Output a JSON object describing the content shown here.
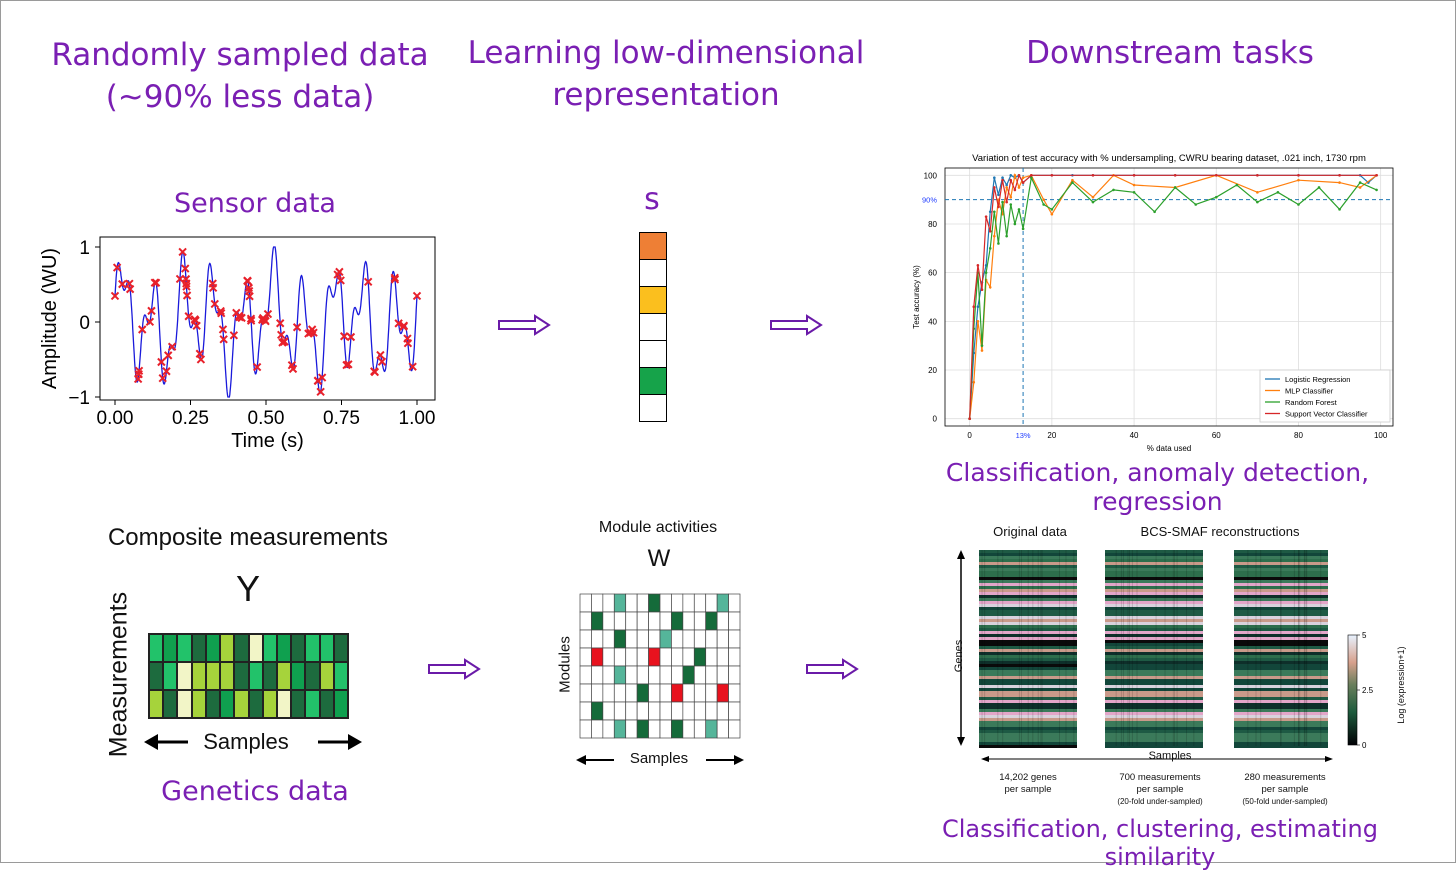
{
  "headers": {
    "col1_line1": "Randomly sampled data",
    "col1_line2": "(~90% less data)",
    "col2_line1": "Learning low-dimensional",
    "col2_line2": "representation",
    "col3": "Downstream tasks"
  },
  "sensor": {
    "title": "Sensor data",
    "ylabel": "Amplitude (WU)",
    "xlabel": "Time (s)",
    "xticks": [
      "0.00",
      "0.25",
      "0.50",
      "0.75",
      "1.00"
    ],
    "yticks": [
      "1",
      "0",
      "−1"
    ],
    "line_color": "#1a1adb",
    "marker_color": "#e8212b"
  },
  "svector": {
    "label": "s",
    "cells": [
      "#ee7f35",
      "#ffffff",
      "#fbbf1e",
      "#ffffff",
      "#ffffff",
      "#16a34a",
      "#ffffff"
    ]
  },
  "accuracy_chart": {
    "caption": "Classification, anomaly detection, regression"
  },
  "chart_data": {
    "type": "line",
    "title": "Variation of test accuracy with % undersampling, CWRU bearing dataset, .021 inch, 1730 rpm",
    "xlabel": "% data used",
    "ylabel": "Test accuracy (%)",
    "xlim": [
      -6,
      103
    ],
    "ylim": [
      -3,
      103
    ],
    "xticks": [
      "0",
      "20",
      "40",
      "60",
      "80",
      "100"
    ],
    "yticks": [
      "0",
      "20",
      "40",
      "60",
      "80",
      "100"
    ],
    "hline": {
      "y": 90,
      "label": "90%"
    },
    "vline": {
      "x": 13,
      "label": "13%"
    },
    "series": [
      {
        "name": "Logistic Regression",
        "color": "#1f77b4",
        "x": [
          0,
          1,
          2,
          3,
          4,
          5,
          6,
          7,
          8,
          9,
          10,
          11,
          12,
          13,
          15,
          20,
          25,
          30,
          40,
          50,
          60,
          70,
          80,
          90,
          95,
          97,
          99
        ],
        "values": [
          0,
          27,
          46,
          56,
          63,
          85,
          99,
          92,
          99,
          96,
          100,
          99,
          100,
          97,
          100,
          100,
          100,
          100,
          100,
          100,
          100,
          100,
          100,
          100,
          100,
          97,
          100
        ]
      },
      {
        "name": "MLP Classifier",
        "color": "#ff7f0e",
        "x": [
          0,
          1,
          2,
          3,
          4,
          5,
          6,
          7,
          8,
          9,
          10,
          11,
          12,
          13,
          15,
          18,
          20,
          25,
          30,
          35,
          40,
          50,
          60,
          70,
          80,
          90,
          95,
          99
        ],
        "values": [
          0,
          15,
          40,
          28,
          57,
          54,
          75,
          90,
          84,
          95,
          91,
          100,
          95,
          99,
          100,
          90,
          84,
          98,
          91,
          100,
          96,
          95,
          100,
          93,
          98,
          97,
          95,
          100
        ]
      },
      {
        "name": "Random Forest",
        "color": "#2ca02c",
        "x": [
          0,
          1,
          2,
          3,
          4,
          5,
          6,
          7,
          8,
          9,
          10,
          11,
          12,
          13,
          15,
          18,
          20,
          25,
          30,
          35,
          40,
          45,
          50,
          55,
          60,
          65,
          70,
          75,
          80,
          85,
          90,
          95,
          99
        ],
        "values": [
          0,
          37,
          60,
          30,
          60,
          70,
          85,
          72,
          89,
          75,
          88,
          80,
          86,
          78,
          99,
          88,
          86,
          97,
          89,
          94,
          93,
          85,
          95,
          88,
          91,
          96,
          89,
          93,
          88,
          95,
          86,
          97,
          94
        ]
      },
      {
        "name": "Support Vector Classifier",
        "color": "#d62728",
        "x": [
          0,
          1,
          2,
          3,
          4,
          5,
          6,
          7,
          8,
          9,
          10,
          11,
          12,
          13,
          15,
          20,
          30,
          40,
          50,
          60,
          70,
          80,
          90,
          99
        ],
        "values": [
          0,
          46,
          63,
          53,
          83,
          77,
          95,
          87,
          98,
          89,
          98,
          94,
          100,
          97,
          100,
          100,
          100,
          100,
          100,
          100,
          100,
          100,
          100,
          100
        ]
      }
    ]
  },
  "genetics": {
    "title": "Composite measurements",
    "matrix_label": "Y",
    "ylabel": "Measurements",
    "xlabel": "Samples",
    "caption": "Genetics data",
    "rows": [
      [
        "#22c26a",
        "#10a04e",
        "#22c26a",
        "#1d6b3e",
        "#0fa04f",
        "#a6d33b",
        "#1d6b3e",
        "#f2f5c7",
        "#22c26a",
        "#0fa04f",
        "#1d6b3e",
        "#22c26a",
        "#22c26a",
        "#1d6b3e"
      ],
      [
        "#1d6b3e",
        "#22c26a",
        "#f2f5c7",
        "#a6d33b",
        "#a6d33b",
        "#a6d33b",
        "#1d6b3e",
        "#22c26a",
        "#1d6b3e",
        "#a6d33b",
        "#0fa04f",
        "#1d6b3e",
        "#a6d33b",
        "#22c26a"
      ],
      [
        "#a6d33b",
        "#1d6b3e",
        "#f2f5c7",
        "#a6d33b",
        "#1d6b3e",
        "#0fa04f",
        "#a6d33b",
        "#1d6b3e",
        "#a6d33b",
        "#f2f5c7",
        "#1d6b3e",
        "#22c26a",
        "#1d6b3e",
        "#0fa04f"
      ]
    ]
  },
  "modules": {
    "title": "Module activities",
    "matrix_label": "W",
    "ylabel": "Modules",
    "xlabel": "Samples",
    "cells": [
      [
        0,
        0,
        0,
        2,
        0,
        0,
        1,
        0,
        0,
        0,
        0,
        0,
        2,
        0
      ],
      [
        0,
        1,
        0,
        0,
        0,
        0,
        0,
        0,
        1,
        0,
        0,
        1,
        0,
        0
      ],
      [
        0,
        0,
        0,
        1,
        0,
        0,
        0,
        2,
        0,
        0,
        0,
        0,
        0,
        0
      ],
      [
        0,
        3,
        0,
        0,
        0,
        0,
        3,
        0,
        0,
        0,
        1,
        0,
        0,
        0
      ],
      [
        0,
        0,
        0,
        2,
        0,
        0,
        0,
        0,
        0,
        1,
        0,
        0,
        0,
        0
      ],
      [
        0,
        0,
        0,
        0,
        0,
        1,
        0,
        0,
        3,
        0,
        0,
        0,
        3,
        0
      ],
      [
        0,
        1,
        0,
        0,
        0,
        0,
        0,
        0,
        0,
        0,
        0,
        0,
        0,
        0
      ],
      [
        0,
        0,
        0,
        2,
        0,
        1,
        0,
        0,
        1,
        0,
        0,
        2,
        0,
        0
      ]
    ],
    "palette": [
      "#ffffff",
      "#156b3a",
      "#55b59a",
      "#e8121e"
    ]
  },
  "reconstruction": {
    "title_original": "Original data",
    "title_recon": "BCS-SMAF reconstructions",
    "genes_label": "Genes",
    "samples_label": "Samples",
    "colorbar_label": "Log (expression+1)",
    "colorbar_ticks": [
      "5",
      "2.5",
      "0"
    ],
    "notes": [
      {
        "line1": "14,202 genes",
        "line2": "per sample",
        "line3": ""
      },
      {
        "line1": "700 measurements",
        "line2": "per sample",
        "line3": "(20-fold under-sampled)"
      },
      {
        "line1": "280 measurements",
        "line2": "per sample",
        "line3": "(50-fold under-sampled)"
      }
    ],
    "caption": "Classification, clustering, estimating similarity"
  }
}
